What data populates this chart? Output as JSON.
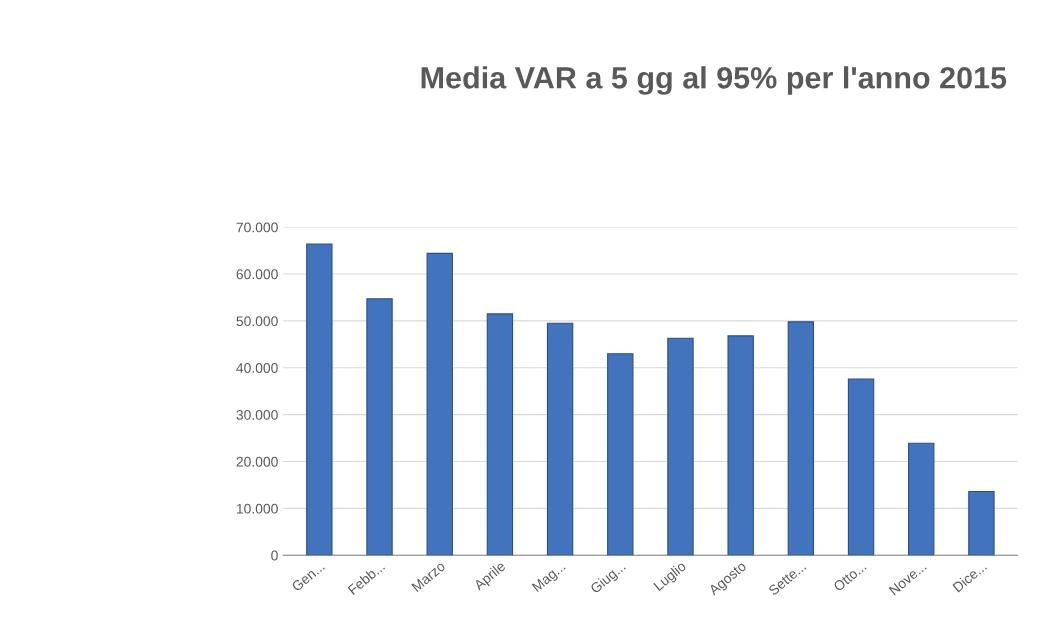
{
  "chart_data": {
    "type": "bar",
    "title": "Media VAR a 5 gg al 95% per l'anno 2015",
    "categories": [
      "Gen...",
      "Febb...",
      "Marzo",
      "Aprile",
      "Mag...",
      "Giug...",
      "Luglio",
      "Agosto",
      "Sette...",
      "Otto...",
      "Nove...",
      "Dice..."
    ],
    "values": [
      66400,
      54700,
      64400,
      51500,
      49500,
      43000,
      46300,
      46800,
      49800,
      37600,
      23900,
      13600
    ],
    "color": "#4274bd",
    "ylim": [
      0,
      70000
    ],
    "yticks": [
      0,
      {
        "value": 10000,
        "label": "10.000"
      },
      {
        "value": 20000,
        "label": "20.000"
      },
      {
        "value": 30000,
        "label": "30.000"
      },
      {
        "value": 40000,
        "label": "40.000"
      },
      {
        "value": 50000,
        "label": "50.000"
      },
      {
        "value": 60000,
        "label": "60.000"
      },
      {
        "value": 70000,
        "label": "70.000"
      }
    ],
    "grid": "y"
  }
}
